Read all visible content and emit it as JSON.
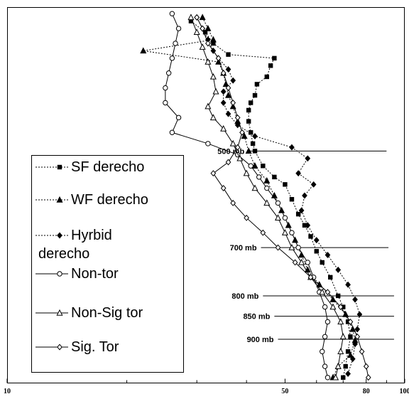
{
  "chart_data": {
    "type": "line",
    "x_axis": {
      "scale": "log",
      "range": [
        10,
        100
      ],
      "tick_labels": [
        {
          "label": "10",
          "value": 10
        },
        {
          "label": "50",
          "value": 50
        },
        {
          "label": "80",
          "value": 80
        },
        {
          "label": "100",
          "value": 100
        }
      ],
      "minor_ticks": [
        20,
        30,
        40,
        60,
        70,
        90
      ]
    },
    "y_axis": {
      "printed": false,
      "direction": "top-to-bottom",
      "range": [
        0,
        1
      ]
    },
    "pressure_levels": [
      {
        "label": "500 mb",
        "y": 0.38,
        "x_start": 40.5,
        "x_end": 90
      },
      {
        "label": "700 mb",
        "y": 0.64,
        "x_start": 43.5,
        "x_end": 91
      },
      {
        "label": "800 mb",
        "y": 0.77,
        "x_start": 44,
        "x_end": 94
      },
      {
        "label": "850 mb",
        "y": 0.825,
        "x_start": 47,
        "x_end": 94
      },
      {
        "label": "900 mb",
        "y": 0.887,
        "x_start": 48,
        "x_end": 94
      }
    ],
    "series": [
      {
        "name": "SF derecho",
        "line": "dotted",
        "marker": "square-filled",
        "points": [
          [
            29,
            0.03
          ],
          [
            31.5,
            0.06
          ],
          [
            33,
            0.09
          ],
          [
            36,
            0.12
          ],
          [
            47,
            0.13
          ],
          [
            46,
            0.15
          ],
          [
            45,
            0.18
          ],
          [
            42.5,
            0.2
          ],
          [
            42,
            0.23
          ],
          [
            41,
            0.25
          ],
          [
            40.5,
            0.27
          ],
          [
            40.5,
            0.3
          ],
          [
            41,
            0.33
          ],
          [
            41.5,
            0.36
          ],
          [
            42,
            0.38
          ],
          [
            44,
            0.42
          ],
          [
            47,
            0.45
          ],
          [
            50,
            0.47
          ],
          [
            52,
            0.51
          ],
          [
            54,
            0.55
          ],
          [
            56,
            0.58
          ],
          [
            58,
            0.61
          ],
          [
            60,
            0.65
          ],
          [
            62,
            0.68
          ],
          [
            65,
            0.72
          ],
          [
            68,
            0.77
          ],
          [
            70,
            0.8
          ],
          [
            72,
            0.84
          ],
          [
            73,
            0.88
          ],
          [
            72,
            0.92
          ],
          [
            71,
            0.96
          ],
          [
            70,
            0.99
          ]
        ]
      },
      {
        "name": "WF derecho",
        "line": "dotted",
        "marker": "triangle-filled",
        "points": [
          [
            31,
            0.02
          ],
          [
            32,
            0.05
          ],
          [
            33,
            0.08
          ],
          [
            22,
            0.11
          ],
          [
            34,
            0.14
          ],
          [
            35,
            0.17
          ],
          [
            35.5,
            0.2
          ],
          [
            36,
            0.23
          ],
          [
            37,
            0.26
          ],
          [
            38,
            0.3
          ],
          [
            39.5,
            0.34
          ],
          [
            40.5,
            0.38
          ],
          [
            42,
            0.42
          ],
          [
            45,
            0.46
          ],
          [
            47,
            0.5
          ],
          [
            49,
            0.54
          ],
          [
            51,
            0.58
          ],
          [
            53,
            0.62
          ],
          [
            55,
            0.66
          ],
          [
            57,
            0.7
          ],
          [
            61,
            0.74
          ],
          [
            66,
            0.78
          ],
          [
            71,
            0.82
          ],
          [
            74,
            0.86
          ],
          [
            75,
            0.89
          ],
          [
            73,
            0.93
          ],
          [
            68,
            0.96
          ],
          [
            66,
            0.99
          ]
        ]
      },
      {
        "name": "Hyrbid derecho",
        "line": "dotted",
        "marker": "diamond-filled",
        "points": [
          [
            30,
            0.02
          ],
          [
            31,
            0.05
          ],
          [
            32,
            0.08
          ],
          [
            33,
            0.11
          ],
          [
            34,
            0.13
          ],
          [
            36,
            0.16
          ],
          [
            37,
            0.19
          ],
          [
            35,
            0.22
          ],
          [
            35,
            0.25
          ],
          [
            36,
            0.28
          ],
          [
            38,
            0.31
          ],
          [
            42,
            0.34
          ],
          [
            52,
            0.37
          ],
          [
            57,
            0.4
          ],
          [
            54,
            0.44
          ],
          [
            59,
            0.47
          ],
          [
            56,
            0.5
          ],
          [
            55,
            0.54
          ],
          [
            57,
            0.58
          ],
          [
            60,
            0.62
          ],
          [
            64,
            0.66
          ],
          [
            68,
            0.7
          ],
          [
            72,
            0.74
          ],
          [
            75,
            0.78
          ],
          [
            77,
            0.82
          ],
          [
            76,
            0.86
          ],
          [
            75,
            0.9
          ],
          [
            74,
            0.94
          ],
          [
            72,
            0.98
          ]
        ]
      },
      {
        "name": "Non-tor",
        "line": "solid",
        "marker": "circle-open",
        "points": [
          [
            26,
            0.01
          ],
          [
            27,
            0.05
          ],
          [
            26.5,
            0.09
          ],
          [
            26,
            0.13
          ],
          [
            25.5,
            0.17
          ],
          [
            25,
            0.21
          ],
          [
            25,
            0.25
          ],
          [
            27,
            0.29
          ],
          [
            26,
            0.33
          ],
          [
            32,
            0.36
          ],
          [
            38,
            0.39
          ],
          [
            41,
            0.42
          ],
          [
            43,
            0.45
          ],
          [
            45,
            0.48
          ],
          [
            48,
            0.52
          ],
          [
            50,
            0.56
          ],
          [
            52,
            0.6
          ],
          [
            54,
            0.64
          ],
          [
            57,
            0.68
          ],
          [
            59,
            0.72
          ],
          [
            61,
            0.76
          ],
          [
            63,
            0.8
          ],
          [
            64,
            0.84
          ],
          [
            63,
            0.88
          ],
          [
            62,
            0.92
          ],
          [
            63,
            0.96
          ],
          [
            64,
            0.99
          ]
        ]
      },
      {
        "name": "Non-Sig tor",
        "line": "solid",
        "marker": "triangle-open",
        "points": [
          [
            29,
            0.02
          ],
          [
            30,
            0.06
          ],
          [
            31,
            0.1
          ],
          [
            32,
            0.14
          ],
          [
            33,
            0.18
          ],
          [
            33.5,
            0.22
          ],
          [
            32,
            0.26
          ],
          [
            33,
            0.29
          ],
          [
            35,
            0.32
          ],
          [
            37,
            0.36
          ],
          [
            38.5,
            0.4
          ],
          [
            40,
            0.44
          ],
          [
            42,
            0.48
          ],
          [
            45,
            0.52
          ],
          [
            48,
            0.56
          ],
          [
            50,
            0.6
          ],
          [
            52,
            0.64
          ],
          [
            55,
            0.68
          ],
          [
            58,
            0.72
          ],
          [
            62,
            0.76
          ],
          [
            66,
            0.8
          ],
          [
            69,
            0.84
          ],
          [
            70,
            0.88
          ],
          [
            69,
            0.92
          ],
          [
            68,
            0.96
          ],
          [
            67,
            0.99
          ]
        ]
      },
      {
        "name": "Sig. Tor",
        "line": "solid",
        "marker": "diamond-open",
        "points": [
          [
            30,
            0.02
          ],
          [
            31,
            0.05
          ],
          [
            32,
            0.09
          ],
          [
            34,
            0.13
          ],
          [
            35,
            0.17
          ],
          [
            36,
            0.21
          ],
          [
            37,
            0.25
          ],
          [
            38,
            0.29
          ],
          [
            39,
            0.33
          ],
          [
            38,
            0.37
          ],
          [
            36,
            0.41
          ],
          [
            33,
            0.44
          ],
          [
            35,
            0.48
          ],
          [
            37,
            0.52
          ],
          [
            40,
            0.56
          ],
          [
            44,
            0.6
          ],
          [
            48,
            0.64
          ],
          [
            53,
            0.68
          ],
          [
            58,
            0.72
          ],
          [
            64,
            0.76
          ],
          [
            69,
            0.8
          ],
          [
            73,
            0.84
          ],
          [
            76,
            0.88
          ],
          [
            78,
            0.92
          ],
          [
            80,
            0.96
          ],
          [
            81,
            0.99
          ]
        ]
      }
    ],
    "legend": {
      "placement": "left",
      "entries": [
        {
          "text": "SF derecho"
        },
        {
          "text": "WF derecho"
        },
        {
          "text": "Hyrbid",
          "text2": "derecho"
        },
        {
          "text": "Non-tor"
        },
        {
          "text": "Non-Sig tor"
        },
        {
          "text": "Sig. Tor"
        }
      ]
    }
  }
}
